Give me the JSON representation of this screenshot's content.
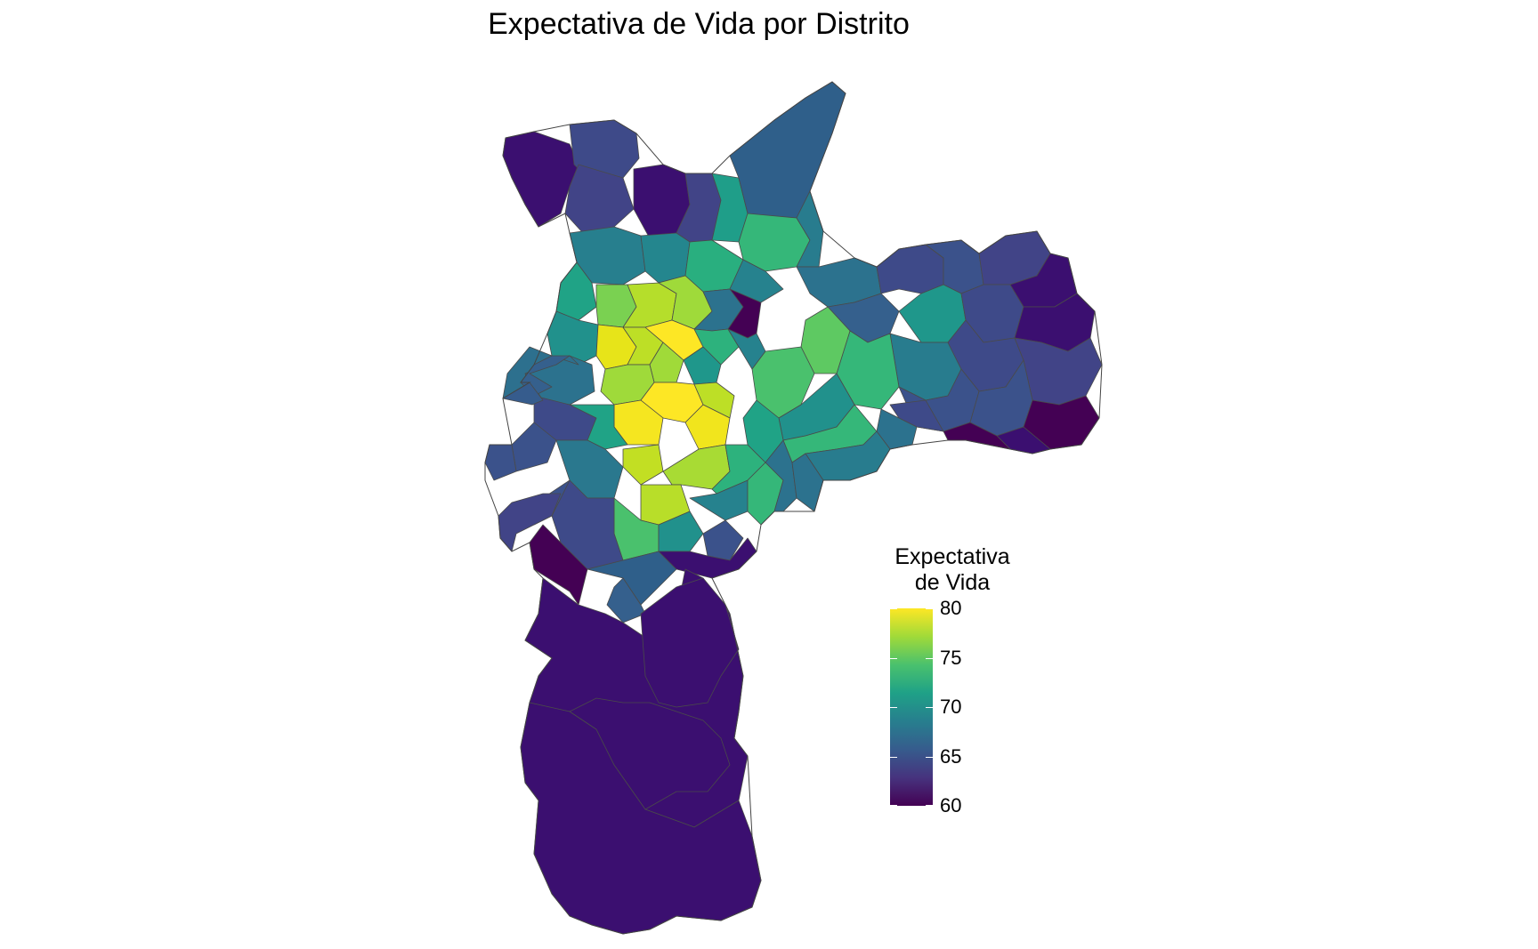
{
  "title": "Expectativa de Vida por Distrito",
  "legend": {
    "title_line1": "Expectativa",
    "title_line2": "de Vida",
    "min": 60,
    "max": 80,
    "ticks": [
      "80",
      "75",
      "70",
      "65",
      "60"
    ],
    "colormap": "viridis",
    "colors": [
      "#440154",
      "#46337e",
      "#365c8d",
      "#277f8e",
      "#1fa187",
      "#4ac16d",
      "#a0da39",
      "#fde725"
    ]
  },
  "map": {
    "border_color": "#555555",
    "background": "#ffffff"
  }
}
